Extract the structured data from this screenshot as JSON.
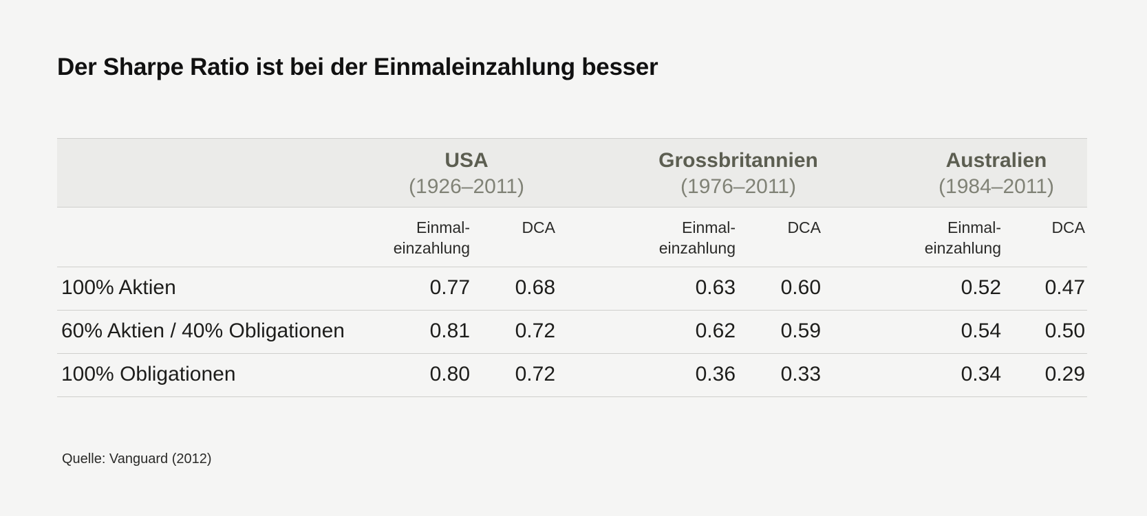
{
  "title": "Der Sharpe Ratio ist bei der Einmaleinzahlung besser",
  "table": {
    "countries": [
      {
        "name": "USA",
        "period": "(1926–2011)"
      },
      {
        "name": "Grossbritannien",
        "period": "(1976–2011)"
      },
      {
        "name": "Australien",
        "period": "(1984–2011)"
      }
    ],
    "subheaders": [
      {
        "lump_line1": "Einmal-",
        "lump_line2": "einzahlung",
        "dca": "DCA"
      },
      {
        "lump_line1": "Einmal-",
        "lump_line2": "einzahlung",
        "dca": "DCA"
      },
      {
        "lump_line1": "Einmal-",
        "lump_line2": "einzahlung",
        "dca": "DCA"
      }
    ],
    "rows": [
      {
        "label": "100% Aktien",
        "values": [
          "0.77",
          "0.68",
          "0.63",
          "0.60",
          "0.52",
          "0.47"
        ]
      },
      {
        "label": "60% Aktien / 40% Obligationen",
        "values": [
          "0.81",
          "0.72",
          "0.62",
          "0.59",
          "0.54",
          "0.50"
        ]
      },
      {
        "label": "100% Obligationen",
        "values": [
          "0.80",
          "0.72",
          "0.36",
          "0.33",
          "0.34",
          "0.29"
        ]
      }
    ]
  },
  "source": "Quelle: Vanguard (2012)"
}
